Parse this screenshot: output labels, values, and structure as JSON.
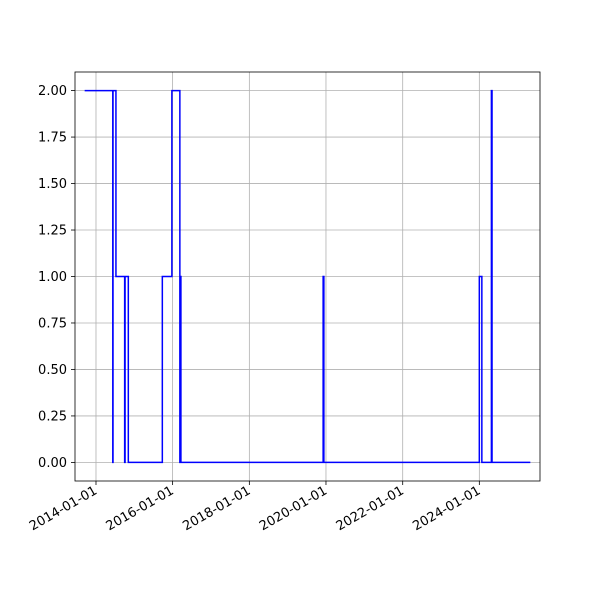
{
  "chart_data": {
    "type": "line",
    "step": true,
    "grid": true,
    "title": "",
    "xlabel": "",
    "ylabel": "",
    "x_axis_type": "date",
    "xlim": [
      "2013-06-15",
      "2025-08-01"
    ],
    "ylim": [
      -0.1,
      2.1
    ],
    "x_ticks": [
      "2014-01-01",
      "2016-01-01",
      "2018-01-01",
      "2020-01-01",
      "2022-01-01",
      "2024-01-01"
    ],
    "y_ticks": [
      "0.00",
      "0.25",
      "0.50",
      "0.75",
      "1.00",
      "1.25",
      "1.50",
      "1.75",
      "2.00"
    ],
    "series": [
      {
        "color": "#0000ff",
        "points": [
          [
            "2013-09-15",
            2
          ],
          [
            "2014-06-10",
            2
          ],
          [
            "2014-06-10",
            0
          ],
          [
            "2014-06-12",
            0
          ],
          [
            "2014-06-12",
            2
          ],
          [
            "2014-07-10",
            2
          ],
          [
            "2014-07-10",
            1
          ],
          [
            "2014-10-01",
            1
          ],
          [
            "2014-10-01",
            0
          ],
          [
            "2014-10-05",
            0
          ],
          [
            "2014-10-05",
            1
          ],
          [
            "2014-11-05",
            1
          ],
          [
            "2014-11-05",
            0
          ],
          [
            "2015-09-25",
            0
          ],
          [
            "2015-09-25",
            1
          ],
          [
            "2015-12-25",
            1
          ],
          [
            "2015-12-25",
            2
          ],
          [
            "2016-03-10",
            2
          ],
          [
            "2016-03-10",
            0
          ],
          [
            "2016-03-14",
            0
          ],
          [
            "2016-03-14",
            1
          ],
          [
            "2016-03-20",
            1
          ],
          [
            "2016-03-20",
            0
          ],
          [
            "2019-12-05",
            0
          ],
          [
            "2019-12-05",
            1
          ],
          [
            "2019-12-12",
            1
          ],
          [
            "2019-12-12",
            0
          ],
          [
            "2024-01-01",
            0
          ],
          [
            "2024-01-01",
            1
          ],
          [
            "2024-01-25",
            1
          ],
          [
            "2024-01-25",
            0
          ],
          [
            "2024-04-25",
            0
          ],
          [
            "2024-04-25",
            2
          ],
          [
            "2024-05-01",
            2
          ],
          [
            "2024-05-01",
            0
          ],
          [
            "2025-05-01",
            0
          ]
        ]
      }
    ]
  }
}
